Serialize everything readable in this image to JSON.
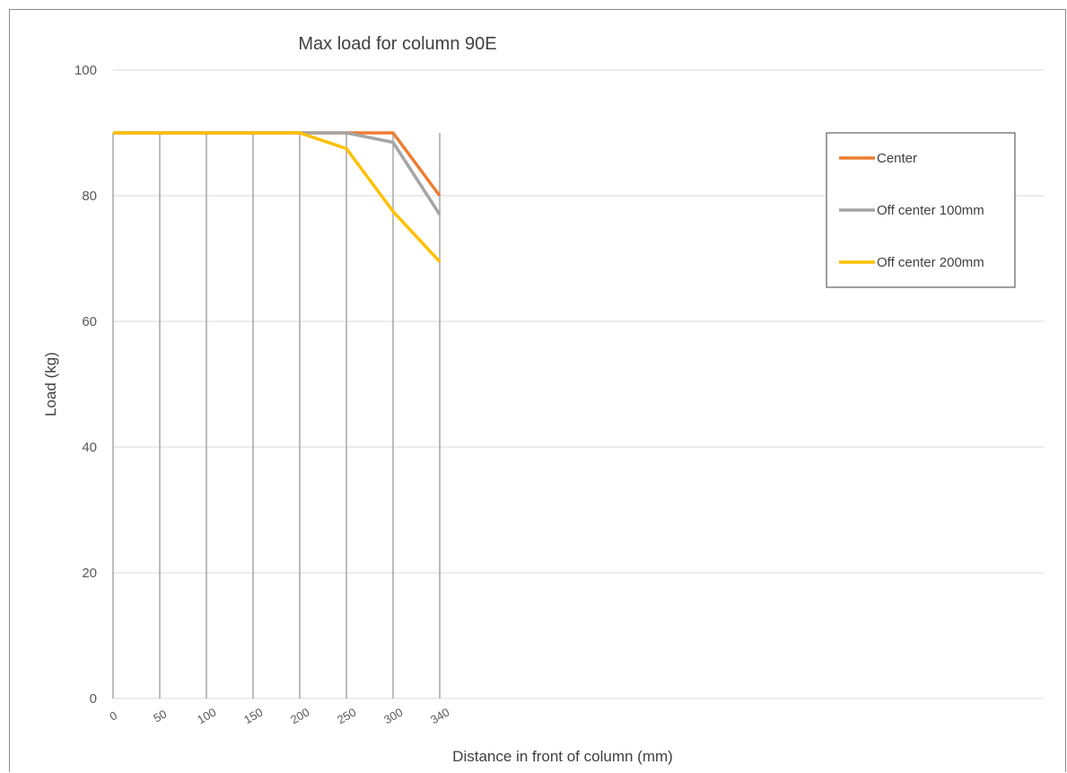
{
  "chart_data": {
    "type": "line",
    "title": "Max load for column 90E",
    "xlabel": "Distance in front of column (mm)",
    "ylabel": "Load (kg)",
    "categories": [
      "0",
      "50",
      "100",
      "150",
      "200",
      "250",
      "300",
      "340"
    ],
    "ylim": [
      0,
      100
    ],
    "yticks": [
      "0",
      "20",
      "40",
      "60",
      "80",
      "100"
    ],
    "grid": true,
    "legend_position": "right",
    "series": [
      {
        "name": "Center",
        "color": "#ED7D31",
        "values": [
          90,
          90,
          90,
          90,
          90,
          90,
          90,
          80
        ]
      },
      {
        "name": "Off center 100mm",
        "color": "#A5A5A5",
        "values": [
          90,
          90,
          90,
          90,
          90,
          90,
          88.5,
          77
        ]
      },
      {
        "name": "Off center 200mm",
        "color": "#FFC000",
        "values": [
          90,
          90,
          90,
          90,
          90,
          87.5,
          77.5,
          69.5
        ]
      }
    ]
  }
}
